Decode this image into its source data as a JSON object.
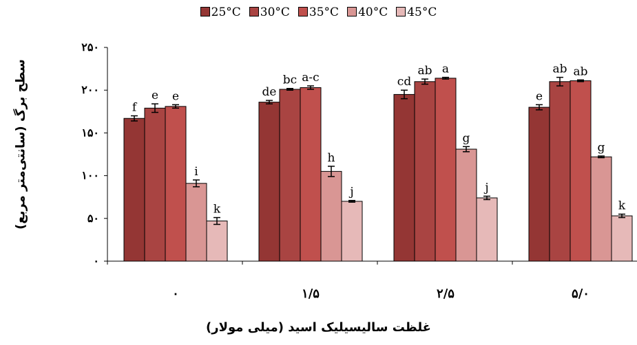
{
  "chart_data": {
    "type": "bar",
    "ylabel": "سطح برگ (سانتی‌متر مربع)",
    "xlabel": "غلظت سالیسیلیک اسید (میلی مولار)",
    "ylim": [
      0,
      250
    ],
    "y_ticks": [
      0,
      50,
      100,
      150,
      200,
      250
    ],
    "y_tick_labels": [
      "۰",
      "۵۰",
      "۱۰۰",
      "۱۵۰",
      "۲۰۰",
      "۲۵۰"
    ],
    "categories": [
      "۰",
      "۱/۵",
      "۲/۵",
      "۵/۰"
    ],
    "legend_position": "top",
    "grid": false,
    "series": [
      {
        "name": "25°C",
        "color": "#943634",
        "values": [
          167,
          186,
          195,
          180
        ],
        "errors": [
          3,
          2,
          5,
          3
        ],
        "labels": [
          "f",
          "de",
          "cd",
          "e"
        ]
      },
      {
        "name": "30°C",
        "color": "#a94442",
        "values": [
          179,
          201,
          210,
          210
        ],
        "errors": [
          5,
          1,
          3,
          5
        ],
        "labels": [
          "e",
          "bc",
          "ab",
          "ab"
        ]
      },
      {
        "name": "35°C",
        "color": "#c0504d",
        "values": [
          181,
          203,
          214,
          211
        ],
        "errors": [
          2,
          2,
          1,
          1
        ],
        "labels": [
          "e",
          "a-c",
          "a",
          "ab"
        ]
      },
      {
        "name": "40°C",
        "color": "#d99694",
        "values": [
          91,
          105,
          131,
          122
        ],
        "errors": [
          4,
          6,
          3,
          1
        ],
        "labels": [
          "i",
          "h",
          "g",
          "g"
        ]
      },
      {
        "name": "45°C",
        "color": "#e6b9b8",
        "values": [
          47,
          70,
          74,
          53
        ],
        "errors": [
          4,
          1,
          2,
          2
        ],
        "labels": [
          "k",
          "j",
          "j",
          "k"
        ]
      }
    ]
  }
}
